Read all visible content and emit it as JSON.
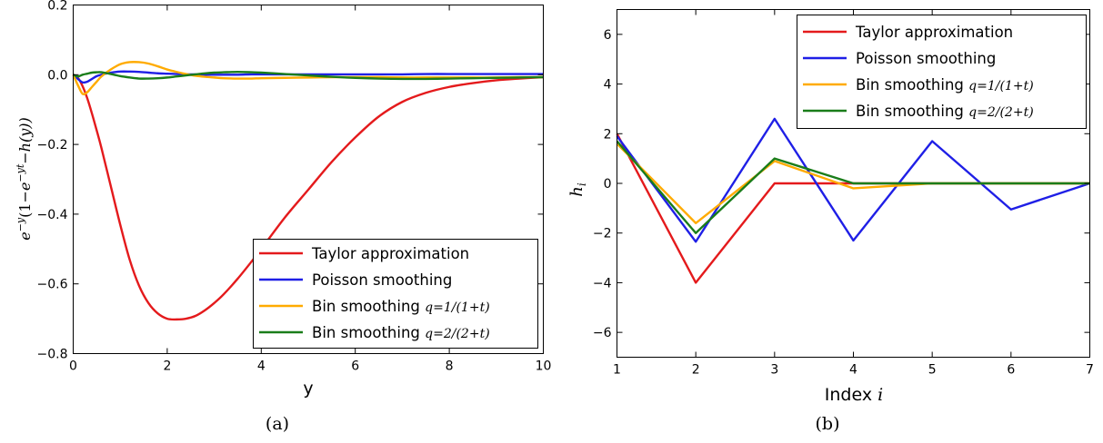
{
  "colors": {
    "taylor": "#e41a1c",
    "poisson": "#1f1fe6",
    "bin1": "#ffab00",
    "bin2": "#1a7d1a"
  },
  "chart_data": [
    {
      "type": "line",
      "caption": "(a)",
      "xlabel": "y",
      "ylabel": "e^{-y}(1-e^{-yt}-h(y))",
      "ylabel_parts": {
        "base": "e",
        "exp1": "−y",
        "open": "(1−",
        "base2": "e",
        "exp2": "−yt",
        "close": "−h(y))"
      },
      "xlim": [
        0,
        10
      ],
      "ylim": [
        -0.8,
        0.2
      ],
      "xticks": [
        "0",
        "2",
        "4",
        "6",
        "8",
        "10"
      ],
      "xtick_values": [
        0,
        2,
        4,
        6,
        8,
        10
      ],
      "yticks": [
        "−0.8",
        "−0.6",
        "−0.4",
        "−0.2",
        "0.0",
        "0.2"
      ],
      "ytick_values": [
        -0.8,
        -0.6,
        -0.4,
        -0.2,
        0.0,
        0.2
      ],
      "grid": false,
      "legend_position": "bottom-right",
      "x": [
        0,
        0.1,
        0.2,
        0.3,
        0.4,
        0.5,
        0.6,
        0.8,
        1.0,
        1.2,
        1.4,
        1.6,
        1.8,
        2.0,
        2.2,
        2.4,
        2.6,
        2.8,
        3.0,
        3.2,
        3.5,
        3.8,
        4.0,
        4.5,
        5.0,
        5.5,
        6.0,
        6.5,
        7.0,
        7.5,
        8.0,
        8.5,
        9.0,
        9.5,
        10.0
      ],
      "series": [
        {
          "name": "Taylor approximation",
          "legend_main": "Taylor approximation",
          "legend_math": "",
          "color_key": "taylor",
          "values": [
            0.0,
            -0.009,
            -0.033,
            -0.068,
            -0.112,
            -0.16,
            -0.21,
            -0.32,
            -0.43,
            -0.53,
            -0.605,
            -0.655,
            -0.685,
            -0.7,
            -0.702,
            -0.7,
            -0.692,
            -0.676,
            -0.655,
            -0.63,
            -0.585,
            -0.535,
            -0.5,
            -0.41,
            -0.33,
            -0.25,
            -0.18,
            -0.12,
            -0.078,
            -0.052,
            -0.035,
            -0.024,
            -0.016,
            -0.011,
            -0.007
          ]
        },
        {
          "name": "Poisson smoothing",
          "legend_main": "Poisson smoothing",
          "legend_math": "",
          "color_key": "poisson",
          "values": [
            0.0,
            -0.012,
            -0.022,
            -0.02,
            -0.012,
            -0.004,
            0.0,
            0.006,
            0.009,
            0.009,
            0.008,
            0.006,
            0.004,
            0.003,
            0.002,
            0.001,
            0.001,
            0.0,
            0.0,
            0.0,
            0.0,
            0.001,
            0.001,
            0.001,
            0.001,
            0.001,
            0.001,
            0.001,
            0.001,
            0.002,
            0.002,
            0.002,
            0.002,
            0.002,
            0.002
          ]
        },
        {
          "name": "Bin smoothing q=1/(1+t)",
          "legend_main": "Bin smoothing ",
          "legend_math": "q=1/(1+t)",
          "color_key": "bin1",
          "values": [
            0.0,
            -0.03,
            -0.055,
            -0.05,
            -0.035,
            -0.02,
            -0.005,
            0.015,
            0.03,
            0.036,
            0.036,
            0.032,
            0.024,
            0.015,
            0.008,
            0.002,
            -0.003,
            -0.006,
            -0.008,
            -0.01,
            -0.011,
            -0.011,
            -0.01,
            -0.009,
            -0.008,
            -0.007,
            -0.007,
            -0.007,
            -0.008,
            -0.008,
            -0.008,
            -0.008,
            -0.008,
            -0.007,
            -0.007
          ]
        },
        {
          "name": "Bin smoothing q=2/(2+t)",
          "legend_main": "Bin smoothing ",
          "legend_math": "q=2/(2+t)",
          "color_key": "bin2",
          "values": [
            0.0,
            -0.005,
            0.0,
            0.003,
            0.006,
            0.007,
            0.007,
            0.002,
            -0.004,
            -0.008,
            -0.011,
            -0.011,
            -0.01,
            -0.008,
            -0.005,
            -0.002,
            0.001,
            0.004,
            0.006,
            0.007,
            0.008,
            0.007,
            0.006,
            0.002,
            -0.002,
            -0.006,
            -0.009,
            -0.011,
            -0.012,
            -0.012,
            -0.011,
            -0.01,
            -0.009,
            -0.008,
            -0.007
          ]
        }
      ]
    },
    {
      "type": "line",
      "caption": "(b)",
      "xlabel": "Index i",
      "xlabel_main": "Index ",
      "xlabel_math": "i",
      "ylabel": "h_i",
      "ylabel_base": "h",
      "ylabel_sub": "i",
      "xlim": [
        1,
        7
      ],
      "ylim": [
        -7,
        7
      ],
      "xticks": [
        "1",
        "2",
        "3",
        "4",
        "5",
        "6",
        "7"
      ],
      "xtick_values": [
        1,
        2,
        3,
        4,
        5,
        6,
        7
      ],
      "yticks": [
        "−6",
        "−4",
        "−2",
        "0",
        "2",
        "4",
        "6"
      ],
      "ytick_values": [
        -6,
        -4,
        -2,
        0,
        2,
        4,
        6
      ],
      "grid": false,
      "legend_position": "top-right",
      "x": [
        1,
        2,
        3,
        4,
        5,
        6,
        7
      ],
      "series": [
        {
          "name": "Taylor approximation",
          "legend_main": "Taylor approximation",
          "legend_math": "",
          "color_key": "taylor",
          "values": [
            2.0,
            -4.0,
            0.0,
            0.0,
            0.0,
            0.0,
            0.0
          ]
        },
        {
          "name": "Poisson smoothing",
          "legend_main": "Poisson smoothing",
          "legend_math": "",
          "color_key": "poisson",
          "values": [
            1.9,
            -2.35,
            2.6,
            -2.3,
            1.7,
            -1.05,
            0.0
          ]
        },
        {
          "name": "Bin smoothing q=1/(1+t)",
          "legend_main": "Bin smoothing ",
          "legend_math": "q=1/(1+t)",
          "color_key": "bin1",
          "values": [
            1.6,
            -1.6,
            0.9,
            -0.2,
            0.0,
            0.0,
            0.0
          ]
        },
        {
          "name": "Bin smoothing q=2/(2+t)",
          "legend_main": "Bin smoothing ",
          "legend_math": "q=2/(2+t)",
          "color_key": "bin2",
          "values": [
            1.7,
            -2.0,
            1.0,
            0.0,
            0.0,
            0.0,
            0.0
          ]
        }
      ]
    }
  ]
}
